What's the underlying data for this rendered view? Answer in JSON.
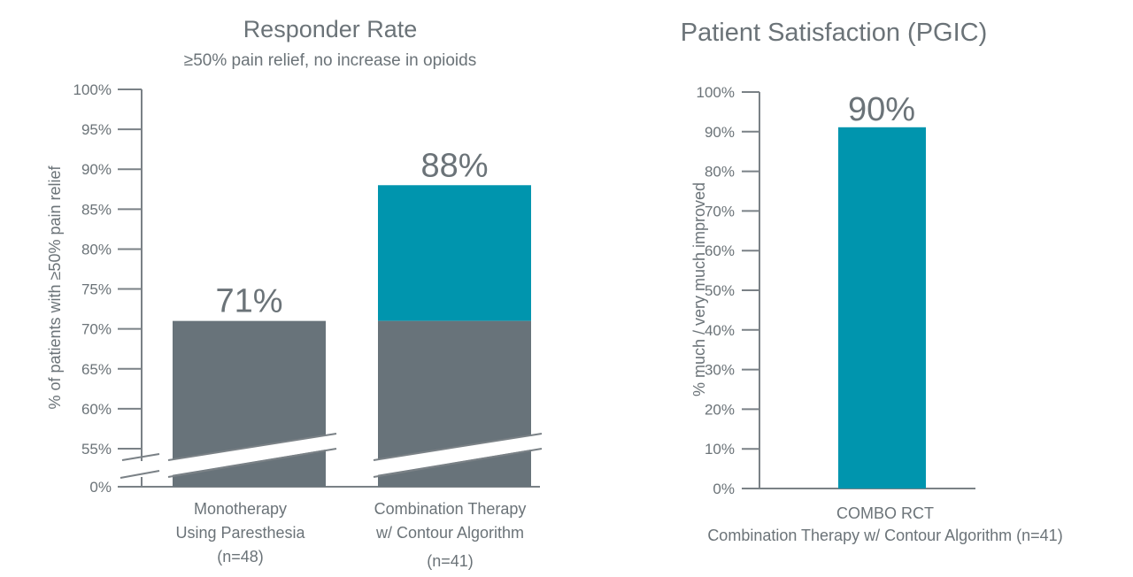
{
  "colors": {
    "gray": "#68737a",
    "teal": "#0095ae",
    "axis": "#7a8186"
  },
  "chart_data": [
    {
      "type": "bar",
      "title": "Responder Rate",
      "subtitle": "≥50% pain relief, no increase in opioids",
      "ylabel": "% of patients with ≥50% pain relief",
      "ylim": [
        0,
        100
      ],
      "axis_break": [
        0,
        55
      ],
      "yticks": [
        "100%",
        "95%",
        "90%",
        "85%",
        "80%",
        "75%",
        "70%",
        "65%",
        "60%",
        "55%",
        "0%"
      ],
      "ytick_values": [
        100,
        95,
        90,
        85,
        80,
        75,
        70,
        65,
        60,
        55,
        0
      ],
      "categories": [
        [
          "Monotherapy",
          "Using Paresthesia",
          "(n=48)"
        ],
        [
          "Combination Therapy",
          "w/ Contour Algorithm",
          "(n=41)"
        ]
      ],
      "values": [
        71,
        88
      ],
      "data_labels": [
        "71%",
        "88%"
      ],
      "stacked_base": 71
    },
    {
      "type": "bar",
      "title": "Patient Satisfaction (PGIC)",
      "ylabel": "% much / very much improved",
      "ylim": [
        0,
        100
      ],
      "yticks": [
        "100%",
        "90%",
        "80%",
        "70%",
        "60%",
        "50%",
        "40%",
        "30%",
        "20%",
        "10%",
        "0%"
      ],
      "ytick_values": [
        100,
        90,
        80,
        70,
        60,
        50,
        40,
        30,
        20,
        10,
        0
      ],
      "categories": [
        [
          "COMBO RCT",
          "Combination Therapy w/ Contour Algorithm (n=41)"
        ]
      ],
      "values": [
        90
      ],
      "data_labels": [
        "90%"
      ]
    }
  ]
}
